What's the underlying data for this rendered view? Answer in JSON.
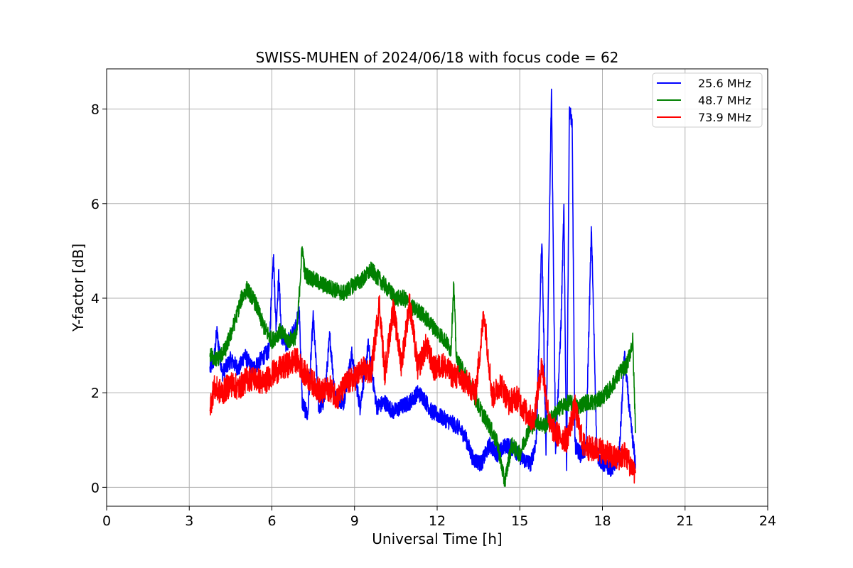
{
  "chart_data": {
    "type": "line",
    "title": "SWISS-MUHEN of 2024/06/18 with focus code = 62",
    "xlabel": "Universal Time [h]",
    "ylabel": "Y-factor [dB]",
    "xlim": [
      0,
      24
    ],
    "ylim": [
      -0.4,
      8.85
    ],
    "xticks": [
      0,
      3,
      6,
      9,
      12,
      15,
      18,
      21,
      24
    ],
    "yticks": [
      0,
      2,
      4,
      6,
      8
    ],
    "grid": true,
    "legend_position": "top-right",
    "series": [
      {
        "name": "25.6 MHz",
        "color": "#0000ff",
        "points": [
          [
            3.75,
            2.5
          ],
          [
            3.9,
            2.7
          ],
          [
            4.0,
            3.3
          ],
          [
            4.2,
            2.4
          ],
          [
            4.5,
            2.7
          ],
          [
            4.8,
            2.5
          ],
          [
            5.0,
            2.8
          ],
          [
            5.3,
            2.5
          ],
          [
            5.6,
            2.7
          ],
          [
            5.9,
            2.9
          ],
          [
            6.05,
            5.0
          ],
          [
            6.15,
            3.4
          ],
          [
            6.25,
            4.5
          ],
          [
            6.35,
            3.2
          ],
          [
            6.5,
            3.0
          ],
          [
            6.8,
            3.3
          ],
          [
            7.0,
            3.7
          ],
          [
            7.1,
            1.8
          ],
          [
            7.3,
            1.5
          ],
          [
            7.5,
            3.6
          ],
          [
            7.7,
            1.7
          ],
          [
            7.9,
            1.8
          ],
          [
            8.1,
            3.2
          ],
          [
            8.3,
            1.9
          ],
          [
            8.6,
            1.8
          ],
          [
            8.9,
            2.8
          ],
          [
            9.2,
            1.7
          ],
          [
            9.5,
            3.0
          ],
          [
            9.8,
            1.7
          ],
          [
            10.1,
            1.8
          ],
          [
            10.4,
            1.6
          ],
          [
            10.7,
            1.7
          ],
          [
            11.0,
            1.8
          ],
          [
            11.3,
            2.0
          ],
          [
            11.5,
            1.9
          ],
          [
            11.8,
            1.6
          ],
          [
            12.1,
            1.5
          ],
          [
            12.4,
            1.4
          ],
          [
            12.7,
            1.3
          ],
          [
            13.0,
            1.1
          ],
          [
            13.3,
            0.6
          ],
          [
            13.6,
            0.5
          ],
          [
            13.9,
            0.9
          ],
          [
            14.2,
            0.7
          ],
          [
            14.5,
            0.9
          ],
          [
            14.8,
            0.8
          ],
          [
            15.1,
            0.6
          ],
          [
            15.4,
            0.5
          ],
          [
            15.6,
            1.0
          ],
          [
            15.8,
            5.3
          ],
          [
            15.95,
            0.8
          ],
          [
            16.15,
            8.4
          ],
          [
            16.3,
            0.8
          ],
          [
            16.5,
            3.5
          ],
          [
            16.6,
            5.9
          ],
          [
            16.7,
            0.4
          ],
          [
            16.8,
            8.0
          ],
          [
            16.9,
            7.7
          ],
          [
            17.0,
            0.9
          ],
          [
            17.2,
            0.7
          ],
          [
            17.4,
            0.8
          ],
          [
            17.6,
            5.5
          ],
          [
            17.8,
            0.7
          ],
          [
            18.0,
            0.5
          ],
          [
            18.3,
            0.4
          ],
          [
            18.6,
            0.6
          ],
          [
            18.8,
            2.8
          ],
          [
            19.0,
            1.5
          ],
          [
            19.2,
            0.5
          ]
        ]
      },
      {
        "name": "48.7 MHz",
        "color": "#008000",
        "points": [
          [
            3.75,
            2.8
          ],
          [
            4.0,
            2.7
          ],
          [
            4.3,
            2.9
          ],
          [
            4.6,
            3.4
          ],
          [
            4.9,
            4.0
          ],
          [
            5.1,
            4.2
          ],
          [
            5.4,
            3.9
          ],
          [
            5.7,
            3.4
          ],
          [
            6.0,
            3.1
          ],
          [
            6.3,
            3.3
          ],
          [
            6.6,
            3.1
          ],
          [
            6.9,
            3.2
          ],
          [
            7.1,
            5.1
          ],
          [
            7.2,
            4.5
          ],
          [
            7.5,
            4.4
          ],
          [
            7.8,
            4.3
          ],
          [
            8.2,
            4.2
          ],
          [
            8.6,
            4.1
          ],
          [
            9.0,
            4.3
          ],
          [
            9.3,
            4.4
          ],
          [
            9.6,
            4.6
          ],
          [
            9.9,
            4.4
          ],
          [
            10.2,
            4.2
          ],
          [
            10.5,
            4.0
          ],
          [
            10.8,
            4.0
          ],
          [
            11.1,
            3.8
          ],
          [
            11.4,
            3.7
          ],
          [
            11.7,
            3.5
          ],
          [
            12.0,
            3.3
          ],
          [
            12.3,
            3.1
          ],
          [
            12.5,
            2.9
          ],
          [
            12.6,
            4.3
          ],
          [
            12.7,
            2.7
          ],
          [
            13.0,
            2.4
          ],
          [
            13.3,
            2.0
          ],
          [
            13.6,
            1.6
          ],
          [
            13.9,
            1.3
          ],
          [
            14.2,
            0.9
          ],
          [
            14.45,
            0.1
          ],
          [
            14.7,
            0.9
          ],
          [
            15.0,
            0.7
          ],
          [
            15.3,
            1.2
          ],
          [
            15.6,
            1.4
          ],
          [
            15.9,
            1.3
          ],
          [
            16.2,
            1.5
          ],
          [
            16.5,
            1.7
          ],
          [
            16.8,
            1.8
          ],
          [
            17.1,
            1.7
          ],
          [
            17.4,
            1.8
          ],
          [
            17.7,
            1.8
          ],
          [
            18.0,
            1.9
          ],
          [
            18.3,
            2.1
          ],
          [
            18.6,
            2.4
          ],
          [
            18.9,
            2.6
          ],
          [
            19.1,
            3.1
          ],
          [
            19.2,
            1.2
          ]
        ]
      },
      {
        "name": "73.9 MHz",
        "color": "#ff0000",
        "points": [
          [
            3.75,
            1.7
          ],
          [
            3.9,
            2.1
          ],
          [
            4.2,
            2.0
          ],
          [
            4.5,
            2.2
          ],
          [
            4.8,
            2.1
          ],
          [
            5.1,
            2.3
          ],
          [
            5.4,
            2.3
          ],
          [
            5.7,
            2.2
          ],
          [
            6.0,
            2.4
          ],
          [
            6.3,
            2.5
          ],
          [
            6.6,
            2.6
          ],
          [
            6.9,
            2.7
          ],
          [
            7.2,
            2.4
          ],
          [
            7.5,
            2.2
          ],
          [
            7.8,
            2.0
          ],
          [
            8.1,
            2.1
          ],
          [
            8.4,
            1.9
          ],
          [
            8.7,
            2.2
          ],
          [
            9.0,
            2.3
          ],
          [
            9.3,
            2.5
          ],
          [
            9.6,
            2.4
          ],
          [
            9.9,
            3.9
          ],
          [
            10.1,
            2.4
          ],
          [
            10.4,
            3.8
          ],
          [
            10.7,
            2.6
          ],
          [
            11.0,
            3.9
          ],
          [
            11.3,
            2.5
          ],
          [
            11.6,
            3.0
          ],
          [
            11.9,
            2.5
          ],
          [
            12.2,
            2.6
          ],
          [
            12.5,
            2.4
          ],
          [
            12.8,
            2.3
          ],
          [
            13.1,
            2.2
          ],
          [
            13.4,
            2.0
          ],
          [
            13.7,
            3.7
          ],
          [
            14.0,
            1.9
          ],
          [
            14.3,
            2.2
          ],
          [
            14.6,
            1.8
          ],
          [
            14.9,
            1.9
          ],
          [
            15.2,
            1.6
          ],
          [
            15.5,
            1.4
          ],
          [
            15.8,
            2.6
          ],
          [
            16.1,
            1.3
          ],
          [
            16.4,
            1.1
          ],
          [
            16.7,
            1.0
          ],
          [
            17.0,
            1.7
          ],
          [
            17.3,
            0.9
          ],
          [
            17.6,
            0.8
          ],
          [
            17.9,
            0.8
          ],
          [
            18.2,
            0.7
          ],
          [
            18.5,
            0.6
          ],
          [
            18.8,
            0.7
          ],
          [
            19.0,
            0.5
          ],
          [
            19.2,
            0.3
          ]
        ]
      }
    ]
  }
}
